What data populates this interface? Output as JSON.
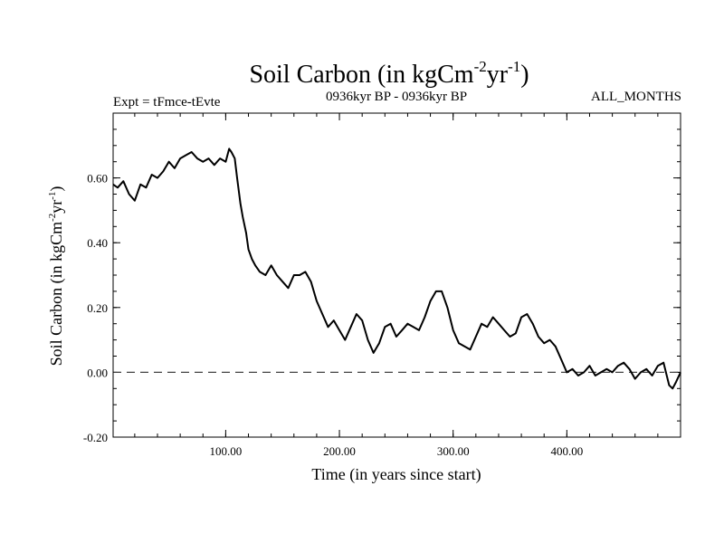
{
  "chart_data": {
    "type": "line",
    "title": {
      "main": "Soil Carbon (in kgCm",
      "sup1": "-2",
      "mid": "yr",
      "sup2": "-1",
      "end": ")"
    },
    "subtitle_left": "Expt = tFmce-tEvte",
    "subtitle_center": "0936kyr BP - 0936kyr BP",
    "subtitle_right": "ALL_MONTHS",
    "xlabel": "Time (in years since start)",
    "ylabel": {
      "main": "Soil Carbon (in kgCm",
      "sup1": "-2",
      "mid": "yr",
      "sup2": "-1",
      "end": ")"
    },
    "xlim": [
      1,
      500
    ],
    "ylim": [
      -0.2,
      0.8
    ],
    "xticks": [
      100,
      200,
      300,
      400
    ],
    "xtick_labels": [
      "100.00",
      "200.00",
      "300.00",
      "400.00"
    ],
    "yticks": [
      -0.2,
      0.0,
      0.2,
      0.4,
      0.6
    ],
    "ytick_labels": [
      "-0.20",
      "0.00",
      "0.20",
      "0.40",
      "0.60"
    ],
    "reference_line": {
      "y": 0.0,
      "style": "dashed"
    },
    "series": [
      {
        "name": "Soil Carbon",
        "x": [
          1,
          5,
          10,
          15,
          20,
          25,
          30,
          35,
          40,
          45,
          50,
          55,
          60,
          65,
          70,
          75,
          80,
          85,
          90,
          95,
          100,
          103,
          105,
          108,
          110,
          113,
          115,
          118,
          120,
          123,
          126,
          130,
          135,
          140,
          145,
          150,
          155,
          160,
          165,
          170,
          175,
          180,
          185,
          190,
          195,
          200,
          205,
          210,
          215,
          220,
          225,
          230,
          235,
          240,
          245,
          250,
          255,
          260,
          265,
          270,
          275,
          280,
          285,
          290,
          295,
          300,
          305,
          310,
          315,
          320,
          325,
          330,
          335,
          340,
          345,
          350,
          355,
          360,
          365,
          370,
          375,
          380,
          385,
          390,
          395,
          400,
          405,
          410,
          415,
          420,
          425,
          430,
          435,
          440,
          445,
          450,
          455,
          460,
          465,
          470,
          475,
          480,
          485,
          490,
          493,
          496,
          500
        ],
        "values": [
          0.58,
          0.57,
          0.59,
          0.55,
          0.53,
          0.58,
          0.57,
          0.61,
          0.6,
          0.62,
          0.65,
          0.63,
          0.66,
          0.67,
          0.68,
          0.66,
          0.65,
          0.66,
          0.64,
          0.66,
          0.65,
          0.69,
          0.68,
          0.66,
          0.6,
          0.52,
          0.48,
          0.43,
          0.38,
          0.35,
          0.33,
          0.31,
          0.3,
          0.33,
          0.3,
          0.28,
          0.26,
          0.3,
          0.3,
          0.31,
          0.28,
          0.22,
          0.18,
          0.14,
          0.16,
          0.13,
          0.1,
          0.14,
          0.18,
          0.16,
          0.1,
          0.06,
          0.09,
          0.14,
          0.15,
          0.11,
          0.13,
          0.15,
          0.14,
          0.13,
          0.17,
          0.22,
          0.25,
          0.25,
          0.2,
          0.13,
          0.09,
          0.08,
          0.07,
          0.11,
          0.15,
          0.14,
          0.17,
          0.15,
          0.13,
          0.11,
          0.12,
          0.17,
          0.18,
          0.15,
          0.11,
          0.09,
          0.1,
          0.08,
          0.04,
          0.0,
          0.01,
          -0.01,
          0.0,
          0.02,
          -0.01,
          0.0,
          0.01,
          0.0,
          0.02,
          0.03,
          0.01,
          -0.02,
          0.0,
          0.01,
          -0.01,
          0.02,
          0.03,
          -0.04,
          -0.05,
          -0.03,
          0.0
        ]
      }
    ]
  }
}
